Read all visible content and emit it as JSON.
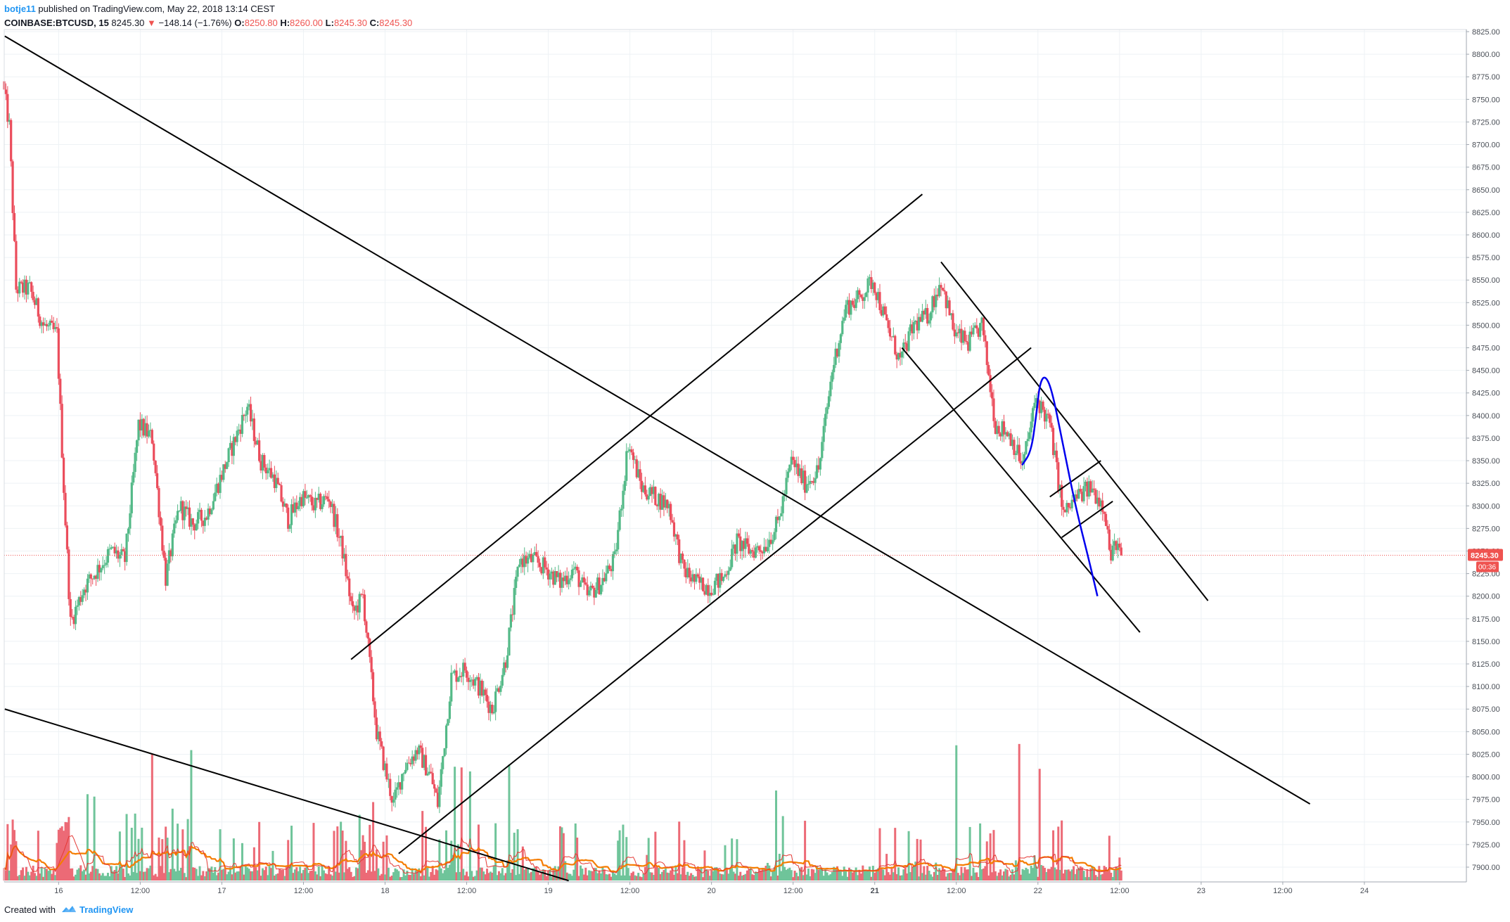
{
  "header": {
    "author": "botje11",
    "published_text": "published on TradingView.com, May 22, 2018 13:14 CEST",
    "symbol": "COINBASE:BTCUSD, 15",
    "last": "8245.30",
    "change": "−148.14 (−1.76%)",
    "o_label": "O:",
    "o": "8250.80",
    "h_label": "H:",
    "h": "8260.00",
    "l_label": "L:",
    "l": "8245.30",
    "c_label": "C:",
    "c": "8245.30"
  },
  "footer": {
    "created_with": "Created with",
    "brand": "TradingView"
  },
  "price_badge": "8245.30",
  "countdown_badge": "00:36",
  "colors": {
    "up": "#53b987",
    "down": "#eb4d5c",
    "vol_up": "#6fc49a",
    "vol_down": "#ec6a76",
    "ma_orange": "#f57c00",
    "ma_red": "#e53935",
    "blue_curve": "#0000ee",
    "trendline": "#000000",
    "grid": "#eef2f5",
    "price_line": "#ef5350"
  },
  "chart_data": {
    "type": "candlestick",
    "symbol": "COINBASE:BTCUSD",
    "interval": "15",
    "y_axis": {
      "min": 7900,
      "max": 8825,
      "step": 25,
      "ticks": [
        "7900.00",
        "7925.00",
        "7950.00",
        "7975.00",
        "8000.00",
        "8025.00",
        "8050.00",
        "8075.00",
        "8100.00",
        "8125.00",
        "8150.00",
        "8175.00",
        "8200.00",
        "8225.00",
        "8250.00",
        "8275.00",
        "8300.00",
        "8325.00",
        "8350.00",
        "8375.00",
        "8400.00",
        "8425.00",
        "8450.00",
        "8475.00",
        "8500.00",
        "8525.00",
        "8550.00",
        "8575.00",
        "8600.00",
        "8625.00",
        "8650.00",
        "8675.00",
        "8700.00",
        "8725.00",
        "8750.00",
        "8775.00",
        "8800.00",
        "8825.00"
      ]
    },
    "x_axis": {
      "start": "2018-05-15T16:00",
      "end": "2018-05-24T15:00",
      "ticks": [
        {
          "t": "2018-05-16T00:00",
          "label": "16",
          "bold": false
        },
        {
          "t": "2018-05-16T12:00",
          "label": "12:00",
          "bold": false
        },
        {
          "t": "2018-05-17T00:00",
          "label": "17",
          "bold": false
        },
        {
          "t": "2018-05-17T12:00",
          "label": "12:00",
          "bold": false
        },
        {
          "t": "2018-05-18T00:00",
          "label": "18",
          "bold": false
        },
        {
          "t": "2018-05-18T12:00",
          "label": "12:00",
          "bold": false
        },
        {
          "t": "2018-05-19T00:00",
          "label": "19",
          "bold": false
        },
        {
          "t": "2018-05-19T12:00",
          "label": "12:00",
          "bold": false
        },
        {
          "t": "2018-05-20T00:00",
          "label": "20",
          "bold": false
        },
        {
          "t": "2018-05-20T12:00",
          "label": "12:00",
          "bold": false
        },
        {
          "t": "2018-05-21T00:00",
          "label": "21",
          "bold": true
        },
        {
          "t": "2018-05-21T12:00",
          "label": "12:00",
          "bold": false
        },
        {
          "t": "2018-05-22T00:00",
          "label": "22",
          "bold": false
        },
        {
          "t": "2018-05-22T12:00",
          "label": "12:00",
          "bold": false
        },
        {
          "t": "2018-05-23T00:00",
          "label": "23",
          "bold": false
        },
        {
          "t": "2018-05-23T12:00",
          "label": "12:00",
          "bold": false
        },
        {
          "t": "2018-05-24T00:00",
          "label": "24",
          "bold": false
        }
      ]
    },
    "last_price": 8245.3,
    "price_path": [
      [
        "2018-05-15T16:00",
        8770
      ],
      [
        "2018-05-15T17:00",
        8720
      ],
      [
        "2018-05-15T18:00",
        8540
      ],
      [
        "2018-05-15T20:00",
        8540
      ],
      [
        "2018-05-15T22:00",
        8500
      ],
      [
        "2018-05-16T00:00",
        8490
      ],
      [
        "2018-05-16T01:00",
        8320
      ],
      [
        "2018-05-16T02:00",
        8170
      ],
      [
        "2018-05-16T04:00",
        8210
      ],
      [
        "2018-05-16T06:00",
        8230
      ],
      [
        "2018-05-16T08:00",
        8250
      ],
      [
        "2018-05-16T10:00",
        8240
      ],
      [
        "2018-05-16T12:00",
        8390
      ],
      [
        "2018-05-16T14:00",
        8375
      ],
      [
        "2018-05-16T16:00",
        8220
      ],
      [
        "2018-05-16T18:00",
        8300
      ],
      [
        "2018-05-16T20:00",
        8280
      ],
      [
        "2018-05-16T22:00",
        8290
      ],
      [
        "2018-05-17T00:00",
        8330
      ],
      [
        "2018-05-17T02:00",
        8370
      ],
      [
        "2018-05-17T04:00",
        8410
      ],
      [
        "2018-05-17T06:00",
        8350
      ],
      [
        "2018-05-17T08:00",
        8330
      ],
      [
        "2018-05-17T10:00",
        8285
      ],
      [
        "2018-05-17T12:00",
        8310
      ],
      [
        "2018-05-17T14:00",
        8300
      ],
      [
        "2018-05-17T16:00",
        8310
      ],
      [
        "2018-05-17T18:00",
        8250
      ],
      [
        "2018-05-17T19:30",
        8180
      ],
      [
        "2018-05-17T21:00",
        8200
      ],
      [
        "2018-05-17T23:00",
        8050
      ],
      [
        "2018-05-18T00:30",
        8000
      ],
      [
        "2018-05-18T01:30",
        7970
      ],
      [
        "2018-05-18T03:00",
        8010
      ],
      [
        "2018-05-18T05:00",
        8030
      ],
      [
        "2018-05-18T07:00",
        8000
      ],
      [
        "2018-05-18T08:00",
        7970
      ],
      [
        "2018-05-18T10:00",
        8110
      ],
      [
        "2018-05-18T12:00",
        8120
      ],
      [
        "2018-05-18T14:00",
        8100
      ],
      [
        "2018-05-18T16:00",
        8075
      ],
      [
        "2018-05-18T18:00",
        8130
      ],
      [
        "2018-05-18T20:00",
        8240
      ],
      [
        "2018-05-18T22:00",
        8240
      ],
      [
        "2018-05-19T00:00",
        8230
      ],
      [
        "2018-05-19T02:00",
        8215
      ],
      [
        "2018-05-19T04:00",
        8230
      ],
      [
        "2018-05-19T06:00",
        8200
      ],
      [
        "2018-05-19T08:00",
        8215
      ],
      [
        "2018-05-19T10:00",
        8240
      ],
      [
        "2018-05-19T12:00",
        8370
      ],
      [
        "2018-05-19T14:00",
        8320
      ],
      [
        "2018-05-19T16:00",
        8310
      ],
      [
        "2018-05-19T18:00",
        8300
      ],
      [
        "2018-05-19T20:00",
        8230
      ],
      [
        "2018-05-19T22:00",
        8215
      ],
      [
        "2018-05-20T00:00",
        8210
      ],
      [
        "2018-05-20T02:00",
        8220
      ],
      [
        "2018-05-20T04:00",
        8260
      ],
      [
        "2018-05-20T06:00",
        8250
      ],
      [
        "2018-05-20T08:00",
        8255
      ],
      [
        "2018-05-20T10:00",
        8280
      ],
      [
        "2018-05-20T12:00",
        8350
      ],
      [
        "2018-05-20T14:00",
        8325
      ],
      [
        "2018-05-20T16:00",
        8340
      ],
      [
        "2018-05-20T18:00",
        8450
      ],
      [
        "2018-05-20T20:00",
        8520
      ],
      [
        "2018-05-20T22:00",
        8530
      ],
      [
        "2018-05-21T00:00",
        8550
      ],
      [
        "2018-05-21T02:00",
        8500
      ],
      [
        "2018-05-21T04:00",
        8460
      ],
      [
        "2018-05-21T06:00",
        8500
      ],
      [
        "2018-05-21T08:00",
        8510
      ],
      [
        "2018-05-21T10:00",
        8550
      ],
      [
        "2018-05-21T12:00",
        8490
      ],
      [
        "2018-05-21T14:00",
        8480
      ],
      [
        "2018-05-21T16:00",
        8500
      ],
      [
        "2018-05-21T18:00",
        8390
      ],
      [
        "2018-05-21T20:00",
        8380
      ],
      [
        "2018-05-21T22:00",
        8345
      ],
      [
        "2018-05-22T00:00",
        8420
      ],
      [
        "2018-05-22T02:00",
        8390
      ],
      [
        "2018-05-22T04:00",
        8290
      ],
      [
        "2018-05-22T06:00",
        8310
      ],
      [
        "2018-05-22T08:00",
        8320
      ],
      [
        "2018-05-22T10:00",
        8300
      ],
      [
        "2018-05-22T11:00",
        8240
      ],
      [
        "2018-05-22T11:45",
        8262
      ],
      [
        "2018-05-22T12:15",
        8245.3
      ]
    ],
    "volume": {
      "max": 250,
      "ma_period": 20
    },
    "drawings": [
      {
        "name": "long-downtrend-line",
        "p1": [
          "2018-05-15T16:05",
          8820
        ],
        "p2": [
          "2018-05-23T16:00",
          7970
        ]
      },
      {
        "name": "lower-downtrend-line",
        "p1": [
          "2018-05-15T16:05",
          8075
        ],
        "p2": [
          "2018-05-19T03:00",
          7885
        ]
      },
      {
        "name": "ascending-channel-top",
        "p1": [
          "2018-05-17T19:00",
          8130
        ],
        "p2": [
          "2018-05-21T07:00",
          8645
        ]
      },
      {
        "name": "ascending-channel-bottom",
        "p1": [
          "2018-05-18T02:00",
          7915
        ],
        "p2": [
          "2018-05-21T23:00",
          8475
        ]
      },
      {
        "name": "falling-channel-top",
        "p1": [
          "2018-05-21T09:45",
          8570
        ],
        "p2": [
          "2018-05-23T01:00",
          8195
        ]
      },
      {
        "name": "falling-channel-bottom",
        "p1": [
          "2018-05-21T04:00",
          8475
        ],
        "p2": [
          "2018-05-22T15:00",
          8160
        ]
      },
      {
        "name": "flag-top",
        "p1": [
          "2018-05-22T01:45",
          8310
        ],
        "p2": [
          "2018-05-22T09:15",
          8350
        ]
      },
      {
        "name": "flag-bottom",
        "p1": [
          "2018-05-22T03:30",
          8265
        ],
        "p2": [
          "2018-05-22T11:00",
          8305
        ]
      }
    ],
    "blue_curve": [
      [
        "2018-05-21T21:40",
        8345
      ],
      [
        "2018-05-21T23:00",
        8360
      ],
      [
        "2018-05-21T23:45",
        8400
      ],
      [
        "2018-05-22T00:15",
        8435
      ],
      [
        "2018-05-22T01:00",
        8445
      ],
      [
        "2018-05-22T02:00",
        8430
      ],
      [
        "2018-05-22T03:30",
        8375
      ],
      [
        "2018-05-22T05:30",
        8300
      ],
      [
        "2018-05-22T07:30",
        8240
      ],
      [
        "2018-05-22T08:45",
        8200
      ]
    ]
  }
}
